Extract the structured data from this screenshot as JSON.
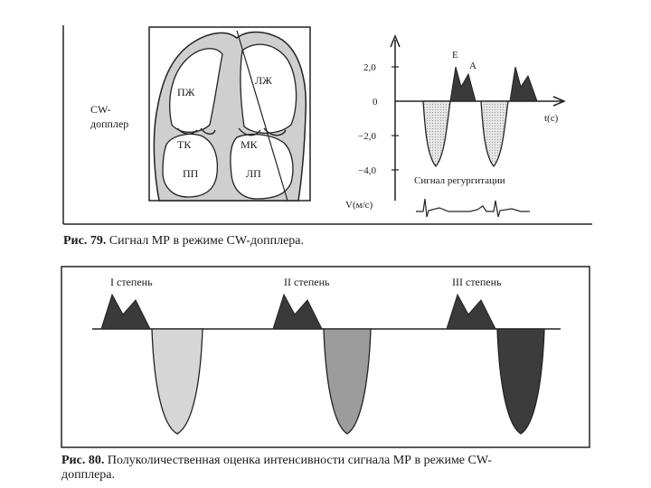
{
  "figure79": {
    "cw_label_line1": "CW-",
    "cw_label_line2": "допплер",
    "heart": {
      "rv": "ПЖ",
      "lv": "ЛЖ",
      "tricuspid": "ТК",
      "mitral": "МК",
      "ra": "ПП",
      "la": "ЛП"
    },
    "graph": {
      "y_ticks": [
        "2,0",
        "0",
        "−2,0",
        "−4,0"
      ],
      "y_axis_label": "V(м/с)",
      "x_axis_label": "t(c)",
      "wave_E": "E",
      "wave_A": "A",
      "regurgitation_label": "Сигнал регургитации"
    },
    "caption_bold": "Рис. 79.",
    "caption_text": " Сигнал МР в режиме CW-допплера."
  },
  "figure80": {
    "grades": [
      "I степень",
      "II степень",
      "III степень"
    ],
    "caption_bold": "Рис. 80.",
    "caption_line1": " Полуколичественная оценка интенсивности сигнала МР в режиме CW-",
    "caption_line2": "допплера."
  },
  "colors": {
    "ink": "#1a1a1a",
    "inflow_fill": "#3a3a3a",
    "grade1_fill": "#d6d6d6",
    "grade2_fill": "#9c9c9c",
    "grade3_fill": "#3c3c3c",
    "heart_fill": "#cfcfcf"
  }
}
